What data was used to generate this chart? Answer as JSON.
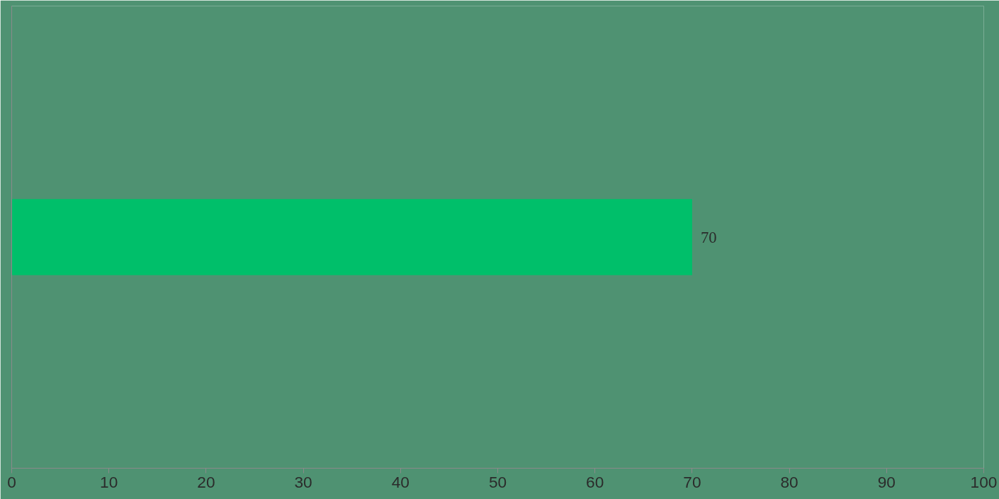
{
  "chart_data": {
    "type": "bar",
    "orientation": "horizontal",
    "categories": [
      null
    ],
    "values": [
      70
    ],
    "color": "#00bf6a",
    "xlim": [
      0,
      100
    ],
    "xticks": [
      0,
      10,
      20,
      30,
      40,
      50,
      60,
      70,
      80,
      90,
      100
    ],
    "data_labels": true,
    "grid": false
  }
}
